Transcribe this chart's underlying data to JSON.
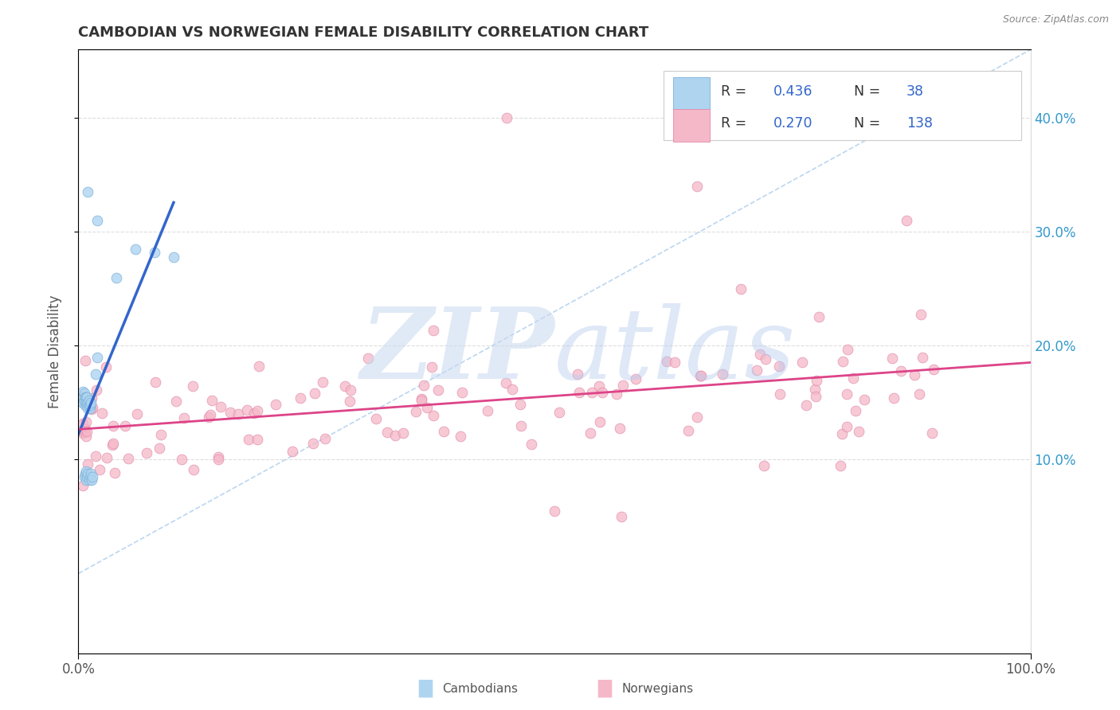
{
  "title": "CAMBODIAN VS NORWEGIAN FEMALE DISABILITY CORRELATION CHART",
  "source": "Source: ZipAtlas.com",
  "ylabel": "Female Disability",
  "right_ytick_labels": [
    "10.0%",
    "20.0%",
    "30.0%",
    "40.0%"
  ],
  "right_ytick_vals": [
    0.1,
    0.2,
    0.3,
    0.4
  ],
  "cambodian_color": "#aed4f0",
  "cambodian_edge": "#7ab0d8",
  "norwegian_color": "#f5b8c8",
  "norwegian_edge": "#e08aaa",
  "cambodian_line_color": "#3366cc",
  "norwegian_line_color": "#dd4488",
  "ref_line_color": "#aaccee",
  "background_color": "#ffffff",
  "grid_color": "#dddddd",
  "watermark_color_zip": "#c8d8f0",
  "watermark_color_atlas": "#b8ccee",
  "xlim": [
    0.0,
    1.0
  ],
  "ylim": [
    -0.07,
    0.46
  ],
  "camb_R": "0.436",
  "camb_N": "38",
  "norw_R": "0.270",
  "norw_N": "138",
  "legend_text_color": "#3366cc",
  "legend_label_color": "#333333"
}
